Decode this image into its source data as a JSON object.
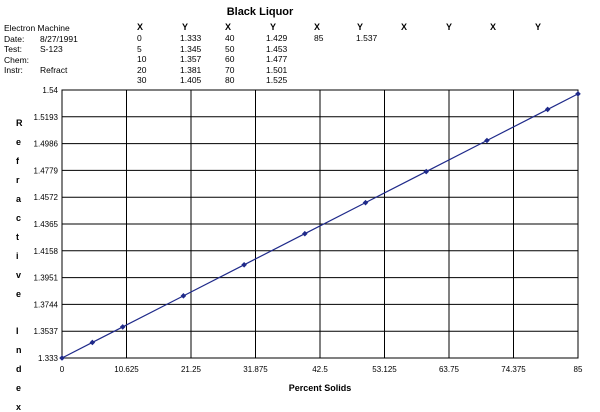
{
  "chart_data": {
    "type": "line",
    "title": "Black Liquor",
    "info": [
      {
        "label": "Electron Machine",
        "value": ""
      },
      {
        "label": "Date:",
        "value": "8/27/1991"
      },
      {
        "label": "Test:",
        "value": "S-123"
      },
      {
        "label": "Chem:",
        "value": ""
      },
      {
        "label": "Instr:",
        "value": "Refract"
      }
    ],
    "table_headers": [
      "X",
      "Y",
      "X",
      "Y",
      "X",
      "Y",
      "X",
      "Y",
      "X",
      "Y"
    ],
    "table_columns": [
      [
        "0",
        "5",
        "10",
        "20",
        "30"
      ],
      [
        "1.333",
        "1.345",
        "1.357",
        "1.381",
        "1.405"
      ],
      [
        "40",
        "50",
        "60",
        "70",
        "80"
      ],
      [
        "1.429",
        "1.453",
        "1.477",
        "1.501",
        "1.525"
      ],
      [
        "85"
      ],
      [
        "1.537"
      ]
    ],
    "x": [
      0,
      5,
      10,
      20,
      30,
      40,
      50,
      60,
      70,
      80,
      85
    ],
    "y": [
      1.333,
      1.345,
      1.357,
      1.381,
      1.405,
      1.429,
      1.453,
      1.477,
      1.501,
      1.525,
      1.537
    ],
    "xlabel": "Percent Solids",
    "ylabel": "Refractive Index",
    "xlim": [
      0,
      85
    ],
    "ylim": [
      1.333,
      1.54
    ],
    "xticks": [
      "0",
      "10.625",
      "21.25",
      "31.875",
      "42.5",
      "53.125",
      "63.75",
      "74.375",
      "85"
    ],
    "yticks": [
      "1.333",
      "1.3537",
      "1.3744",
      "1.3951",
      "1.4158",
      "1.4365",
      "1.4572",
      "1.4779",
      "1.4986",
      "1.5193",
      "1.54"
    ],
    "grid": true,
    "line_color": "#1f2a8a",
    "marker_color": "#1f2a8a"
  }
}
